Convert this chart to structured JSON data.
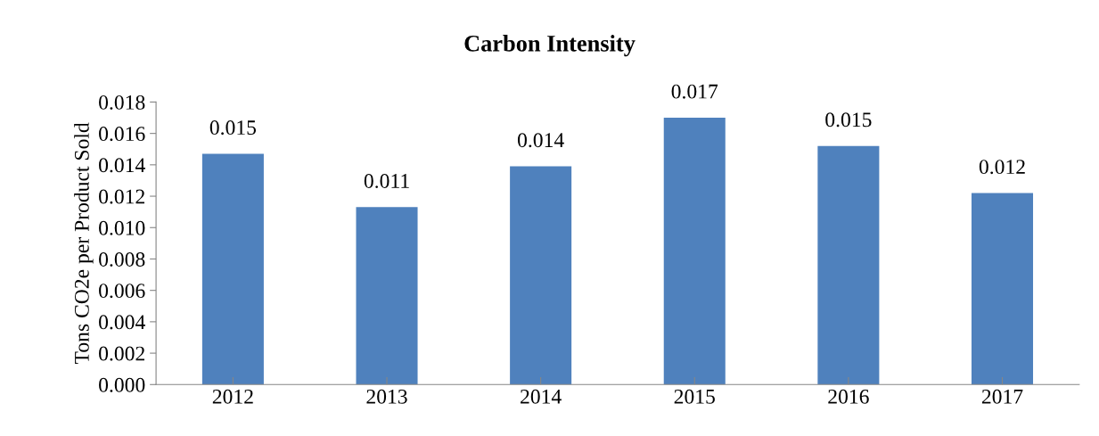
{
  "chart_data": {
    "type": "bar",
    "title": "Carbon Intensity",
    "ylabel": "Tons CO2e per Product Sold",
    "categories": [
      "2012",
      "2013",
      "2014",
      "2015",
      "2016",
      "2017"
    ],
    "values": [
      0.0147,
      0.0113,
      0.0139,
      0.017,
      0.0152,
      0.0122
    ],
    "value_labels": [
      "0.015",
      "0.011",
      "0.014",
      "0.017",
      "0.015",
      "0.012"
    ],
    "color": "#4f81bd",
    "ylim": [
      0,
      0.018
    ],
    "yticks": [
      {
        "value": 0,
        "label": "0.000"
      },
      {
        "value": 0.002,
        "label": "0.002"
      },
      {
        "value": 0.004,
        "label": "0.004"
      },
      {
        "value": 0.006,
        "label": "0.006"
      },
      {
        "value": 0.008,
        "label": "0.008"
      },
      {
        "value": 0.01,
        "label": "0.010"
      },
      {
        "value": 0.012,
        "label": "0.012"
      },
      {
        "value": 0.014,
        "label": "0.014"
      },
      {
        "value": 0.016,
        "label": "0.016"
      },
      {
        "value": 0.018,
        "label": "0.018"
      }
    ],
    "grid": false
  }
}
